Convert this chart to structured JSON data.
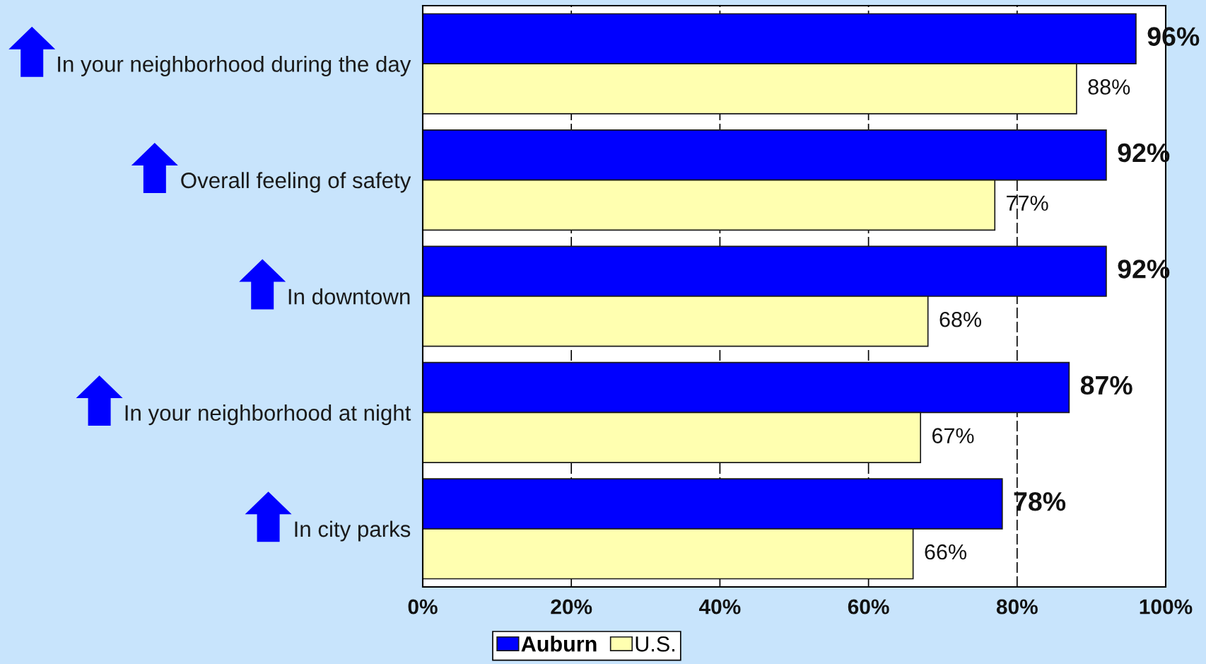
{
  "chart_data": {
    "type": "bar",
    "orientation": "horizontal",
    "categories": [
      "In your neighborhood during the day",
      "Overall feeling of safety",
      "In downtown",
      "In your neighborhood at night",
      "In city parks"
    ],
    "series": [
      {
        "name": "Auburn",
        "color": "#0000ff",
        "values": [
          96,
          92,
          92,
          87,
          78
        ],
        "value_labels": [
          "96%",
          "92%",
          "92%",
          "87%",
          "78%"
        ]
      },
      {
        "name": "U.S.",
        "color": "#ffffb0",
        "values": [
          88,
          77,
          68,
          67,
          66
        ],
        "value_labels": [
          "88%",
          "77%",
          "68%",
          "67%",
          "66%"
        ]
      }
    ],
    "xlim": [
      0,
      100
    ],
    "xticks": [
      {
        "value": 0,
        "label": "0%"
      },
      {
        "value": 20,
        "label": "20%"
      },
      {
        "value": 40,
        "label": "40%"
      },
      {
        "value": 60,
        "label": "60%"
      },
      {
        "value": 80,
        "label": "80%"
      },
      {
        "value": 100,
        "label": "100%"
      }
    ],
    "grid": "x",
    "legend": "bottom"
  }
}
